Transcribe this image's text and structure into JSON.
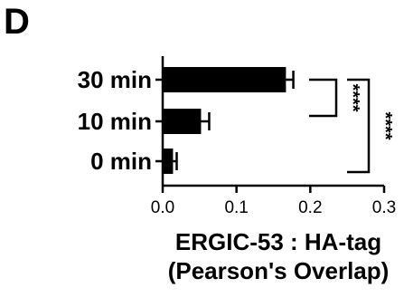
{
  "panel_label": "D",
  "chart_data": {
    "type": "bar",
    "orientation": "horizontal",
    "categories": [
      "30 min",
      "10 min",
      "0 min"
    ],
    "values": [
      0.167,
      0.052,
      0.014
    ],
    "errors": [
      0.01,
      0.011,
      0.005
    ],
    "xlabel": [
      "ERGIC-53 : HA-tag",
      "(Pearson's Overlap)"
    ],
    "ylabel": "",
    "xlim": [
      0.0,
      0.3
    ],
    "xticks": [
      "0.0",
      "0.1",
      "0.2",
      "0.3"
    ],
    "grid": false,
    "bar_color": "#000000",
    "significance": [
      {
        "between": [
          "30 min",
          "10 min"
        ],
        "label": "****"
      },
      {
        "between": [
          "30 min",
          "0 min"
        ],
        "label": "****"
      }
    ]
  }
}
